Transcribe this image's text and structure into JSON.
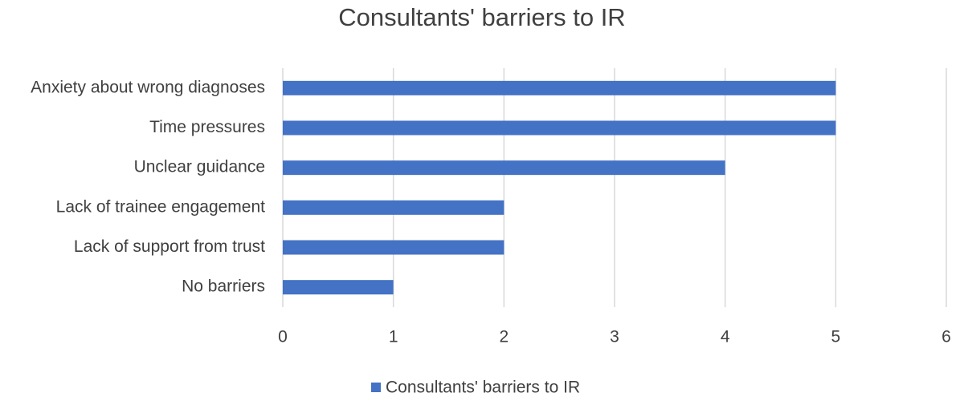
{
  "chart_data": {
    "type": "barh",
    "title": "Consultants' barriers to IR",
    "categories": [
      "Anxiety about wrong diagnoses",
      "Time pressures",
      "Unclear guidance",
      "Lack of trainee engagement",
      "Lack of support from trust",
      "No barriers"
    ],
    "series": [
      {
        "name": "Consultants' barriers to IR",
        "color": "#4472c4",
        "values": [
          5,
          5,
          4,
          2,
          2,
          1
        ]
      }
    ],
    "xlim": [
      0,
      6
    ],
    "xticks": [
      0,
      1,
      2,
      3,
      4,
      5,
      6
    ],
    "grid": true,
    "legend": "bottom"
  }
}
